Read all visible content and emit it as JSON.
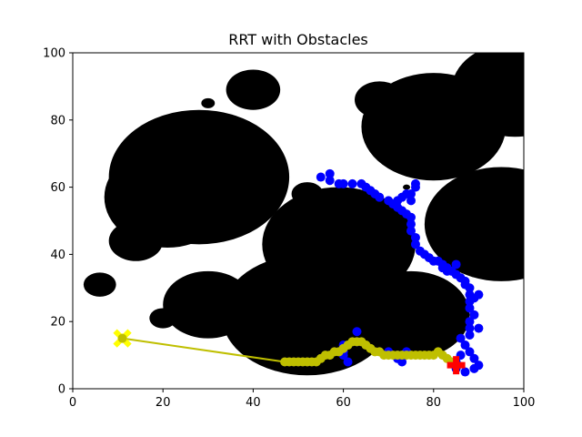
{
  "chart_data": {
    "type": "scatter",
    "title": "RRT with Obstacles",
    "xlabel": "",
    "ylabel": "",
    "xlim": [
      0,
      100
    ],
    "ylim": [
      0,
      100
    ],
    "x_ticks": [
      0,
      20,
      40,
      60,
      80,
      100
    ],
    "y_ticks": [
      0,
      20,
      40,
      60,
      80,
      100
    ],
    "grid": false,
    "colors": {
      "obstacle": "#000000",
      "tree": "#0000ff",
      "path": "#bfbf00",
      "start": "#ffff00",
      "goal": "#ff0000"
    },
    "obstacles": [
      {
        "cx": 28,
        "cy": 63,
        "rx": 20,
        "ry": 20
      },
      {
        "cx": 21,
        "cy": 57,
        "rx": 14,
        "ry": 15
      },
      {
        "cx": 14,
        "cy": 44,
        "rx": 6,
        "ry": 6
      },
      {
        "cx": 6,
        "cy": 31,
        "rx": 3.6,
        "ry": 3.6
      },
      {
        "cx": 20,
        "cy": 21,
        "rx": 3,
        "ry": 3
      },
      {
        "cx": 30,
        "cy": 85,
        "rx": 1.5,
        "ry": 1.5
      },
      {
        "cx": 40,
        "cy": 89,
        "rx": 6,
        "ry": 6
      },
      {
        "cx": 30,
        "cy": 25,
        "rx": 10,
        "ry": 10
      },
      {
        "cx": 52,
        "cy": 22,
        "rx": 19,
        "ry": 18
      },
      {
        "cx": 59,
        "cy": 43,
        "rx": 17,
        "ry": 17
      },
      {
        "cx": 52,
        "cy": 58,
        "rx": 3.5,
        "ry": 3.5
      },
      {
        "cx": 75,
        "cy": 22,
        "rx": 13,
        "ry": 13
      },
      {
        "cx": 80,
        "cy": 78,
        "rx": 16,
        "ry": 16
      },
      {
        "cx": 68,
        "cy": 86,
        "rx": 5.5,
        "ry": 5.5
      },
      {
        "cx": 95,
        "cy": 49,
        "rx": 17,
        "ry": 17
      },
      {
        "cx": 98,
        "cy": 89,
        "rx": 14,
        "ry": 14
      },
      {
        "cx": 74,
        "cy": 60,
        "rx": 0.8,
        "ry": 0.8
      }
    ],
    "tree_nodes": [
      [
        55,
        63
      ],
      [
        57,
        64
      ],
      [
        57,
        62
      ],
      [
        59,
        61
      ],
      [
        60,
        61
      ],
      [
        62,
        61
      ],
      [
        64,
        61
      ],
      [
        65,
        60
      ],
      [
        66,
        59
      ],
      [
        67,
        58
      ],
      [
        68,
        57
      ],
      [
        70,
        56
      ],
      [
        71,
        55
      ],
      [
        72,
        54
      ],
      [
        73,
        53
      ],
      [
        74,
        52
      ],
      [
        75,
        51
      ],
      [
        75,
        49
      ],
      [
        75,
        47
      ],
      [
        76,
        45
      ],
      [
        76,
        43
      ],
      [
        77,
        41
      ],
      [
        78,
        40
      ],
      [
        79,
        39
      ],
      [
        80,
        38
      ],
      [
        81,
        38
      ],
      [
        82,
        37
      ],
      [
        83,
        36
      ],
      [
        84,
        35
      ],
      [
        85,
        34
      ],
      [
        86,
        33
      ],
      [
        87,
        32
      ],
      [
        87,
        31
      ],
      [
        88,
        30
      ],
      [
        88,
        28
      ],
      [
        89,
        27
      ],
      [
        90,
        28
      ],
      [
        88,
        26
      ],
      [
        88,
        24
      ],
      [
        89,
        22
      ],
      [
        88,
        20
      ],
      [
        88,
        18
      ],
      [
        90,
        18
      ],
      [
        88,
        16
      ],
      [
        86,
        15
      ],
      [
        87,
        13
      ],
      [
        88,
        11
      ],
      [
        86,
        10
      ],
      [
        85,
        8
      ],
      [
        85,
        6
      ],
      [
        87,
        5
      ],
      [
        89,
        6
      ],
      [
        90,
        7
      ],
      [
        89,
        9
      ],
      [
        75,
        56
      ],
      [
        75,
        58
      ],
      [
        76,
        60
      ],
      [
        76,
        61
      ],
      [
        74,
        58
      ],
      [
        73,
        57
      ],
      [
        72,
        56
      ],
      [
        83,
        35
      ],
      [
        82,
        36
      ],
      [
        85,
        37
      ],
      [
        63,
        14
      ],
      [
        63,
        17
      ],
      [
        60,
        13
      ],
      [
        60,
        11
      ],
      [
        61,
        8
      ],
      [
        60,
        10
      ],
      [
        73,
        8
      ],
      [
        72,
        9
      ],
      [
        74,
        11
      ],
      [
        70,
        11
      ],
      [
        72,
        10
      ]
    ],
    "path": [
      [
        11,
        15
      ],
      [
        47,
        8
      ],
      [
        48,
        8
      ],
      [
        49,
        8
      ],
      [
        50,
        8
      ],
      [
        51,
        8
      ],
      [
        52,
        8
      ],
      [
        53,
        8
      ],
      [
        54,
        8
      ],
      [
        55,
        9
      ],
      [
        56,
        10
      ],
      [
        57,
        10
      ],
      [
        58,
        11
      ],
      [
        59,
        11
      ],
      [
        60,
        12
      ],
      [
        61,
        13
      ],
      [
        62,
        14
      ],
      [
        63,
        14
      ],
      [
        64,
        14
      ],
      [
        65,
        13
      ],
      [
        66,
        12
      ],
      [
        67,
        11
      ],
      [
        68,
        11
      ],
      [
        69,
        10
      ],
      [
        70,
        10
      ],
      [
        71,
        10
      ],
      [
        72,
        10
      ],
      [
        73,
        10
      ],
      [
        74,
        10
      ],
      [
        75,
        10
      ],
      [
        76,
        10
      ],
      [
        77,
        10
      ],
      [
        78,
        10
      ],
      [
        79,
        10
      ],
      [
        80,
        10
      ],
      [
        81,
        11
      ],
      [
        82,
        10
      ],
      [
        83,
        9
      ],
      [
        84,
        8
      ],
      [
        85,
        7
      ]
    ],
    "start": [
      11,
      15
    ],
    "goal": [
      85,
      7
    ]
  }
}
